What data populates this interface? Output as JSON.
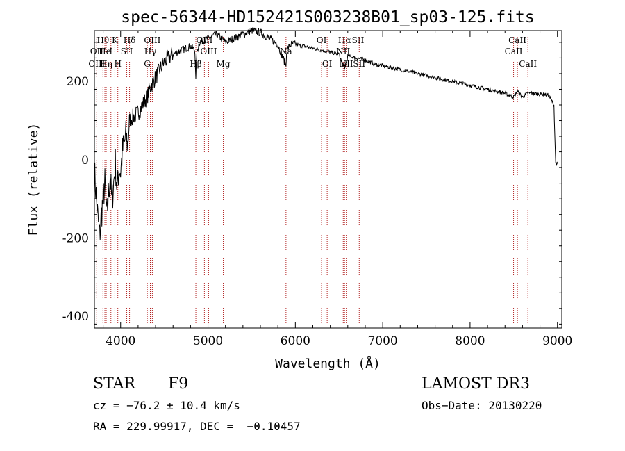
{
  "chart_data": {
    "type": "line",
    "title": "spec-56344-HD152421S003238B01_sp03-125.fits",
    "xlabel": "Wavelength (Å)",
    "ylabel": "Flux (relative)",
    "xlim": [
      3700,
      9050
    ],
    "ylim": [
      -430,
      330
    ],
    "x_ticks": [
      4000,
      5000,
      6000,
      7000,
      8000,
      9000
    ],
    "y_ticks": [
      -400,
      -200,
      0,
      200
    ],
    "series": [
      {
        "name": "flux",
        "x": [
          3700,
          3720,
          3740,
          3760,
          3780,
          3800,
          3820,
          3840,
          3860,
          3880,
          3900,
          3920,
          3940,
          3960,
          3980,
          4000,
          4020,
          4040,
          4060,
          4080,
          4100,
          4150,
          4200,
          4250,
          4300,
          4350,
          4400,
          4450,
          4500,
          4600,
          4700,
          4800,
          4850,
          4861,
          4870,
          4900,
          5000,
          5100,
          5200,
          5300,
          5400,
          5500,
          5600,
          5700,
          5800,
          5893,
          5900,
          5950,
          6000,
          6100,
          6200,
          6300,
          6400,
          6500,
          6563,
          6600,
          6700,
          6800,
          6900,
          7000,
          7200,
          7400,
          7600,
          7800,
          8000,
          8200,
          8400,
          8498,
          8542,
          8600,
          8662,
          8700,
          8800,
          8900,
          8960,
          8980,
          9000
        ],
        "y": [
          -30,
          -90,
          -150,
          -195,
          -140,
          -100,
          -60,
          -150,
          -90,
          -40,
          -110,
          -60,
          -10,
          -80,
          -20,
          -30,
          20,
          40,
          60,
          40,
          100,
          110,
          120,
          140,
          160,
          190,
          210,
          230,
          250,
          270,
          280,
          290,
          280,
          200,
          270,
          300,
          310,
          320,
          300,
          310,
          320,
          330,
          325,
          310,
          295,
          240,
          280,
          295,
          295,
          290,
          285,
          280,
          275,
          270,
          230,
          265,
          260,
          255,
          245,
          240,
          230,
          220,
          210,
          200,
          190,
          180,
          170,
          160,
          175,
          160,
          170,
          170,
          168,
          165,
          140,
          -10,
          -10
        ]
      }
    ],
    "lines": [
      {
        "label": "Hθ",
        "x": 3798,
        "row": 1
      },
      {
        "label": "OII",
        "x": 3727,
        "row": 2
      },
      {
        "label": "OIII",
        "x": 3727,
        "row": 3
      },
      {
        "label": "He",
        "x": 3820,
        "row": 2
      },
      {
        "label": "Hη",
        "x": 3835,
        "row": 3
      },
      {
        "label": "K",
        "x": 3934,
        "row": 1
      },
      {
        "label": "H",
        "x": 3968,
        "row": 3
      },
      {
        "label": "I",
        "x": 3889,
        "row": 2
      },
      {
        "label": "Hδ",
        "x": 4102,
        "row": 1
      },
      {
        "label": "SII",
        "x": 4070,
        "row": 2
      },
      {
        "label": "OIII",
        "x": 4363,
        "row": 1
      },
      {
        "label": "Hγ",
        "x": 4340,
        "row": 2
      },
      {
        "label": "G",
        "x": 4305,
        "row": 3
      },
      {
        "label": "Hβ",
        "x": 4861,
        "row": 3
      },
      {
        "label": "OIII",
        "x": 4959,
        "row": 1
      },
      {
        "label": "OIII",
        "x": 5007,
        "row": 2
      },
      {
        "label": "Mg",
        "x": 5175,
        "row": 3
      },
      {
        "label": "Na",
        "x": 5893,
        "row": 2
      },
      {
        "label": "OI",
        "x": 6300,
        "row": 1
      },
      {
        "label": "OI",
        "x": 6364,
        "row": 3
      },
      {
        "label": "Hα",
        "x": 6563,
        "row": 1
      },
      {
        "label": "NII",
        "x": 6548,
        "row": 2
      },
      {
        "label": "NII",
        "x": 6583,
        "row": 3
      },
      {
        "label": "SII",
        "x": 6717,
        "row": 1
      },
      {
        "label": "SII",
        "x": 6731,
        "row": 3
      },
      {
        "label": "CaII",
        "x": 8542,
        "row": 1
      },
      {
        "label": "CaII",
        "x": 8498,
        "row": 2
      },
      {
        "label": "CaII",
        "x": 8662,
        "row": 3
      }
    ]
  },
  "info": {
    "object_class": "STAR",
    "subclass": "F9",
    "survey": "LAMOST DR3",
    "cz": "cz = −76.2 ± 10.4 km/s",
    "obs_date": "Obs−Date: 20130220",
    "coords": "RA = 229.99917, DEC =  −0.10457"
  },
  "colors": {
    "spectrum": "#000000",
    "lines": "#b22222",
    "axes": "#000000"
  }
}
